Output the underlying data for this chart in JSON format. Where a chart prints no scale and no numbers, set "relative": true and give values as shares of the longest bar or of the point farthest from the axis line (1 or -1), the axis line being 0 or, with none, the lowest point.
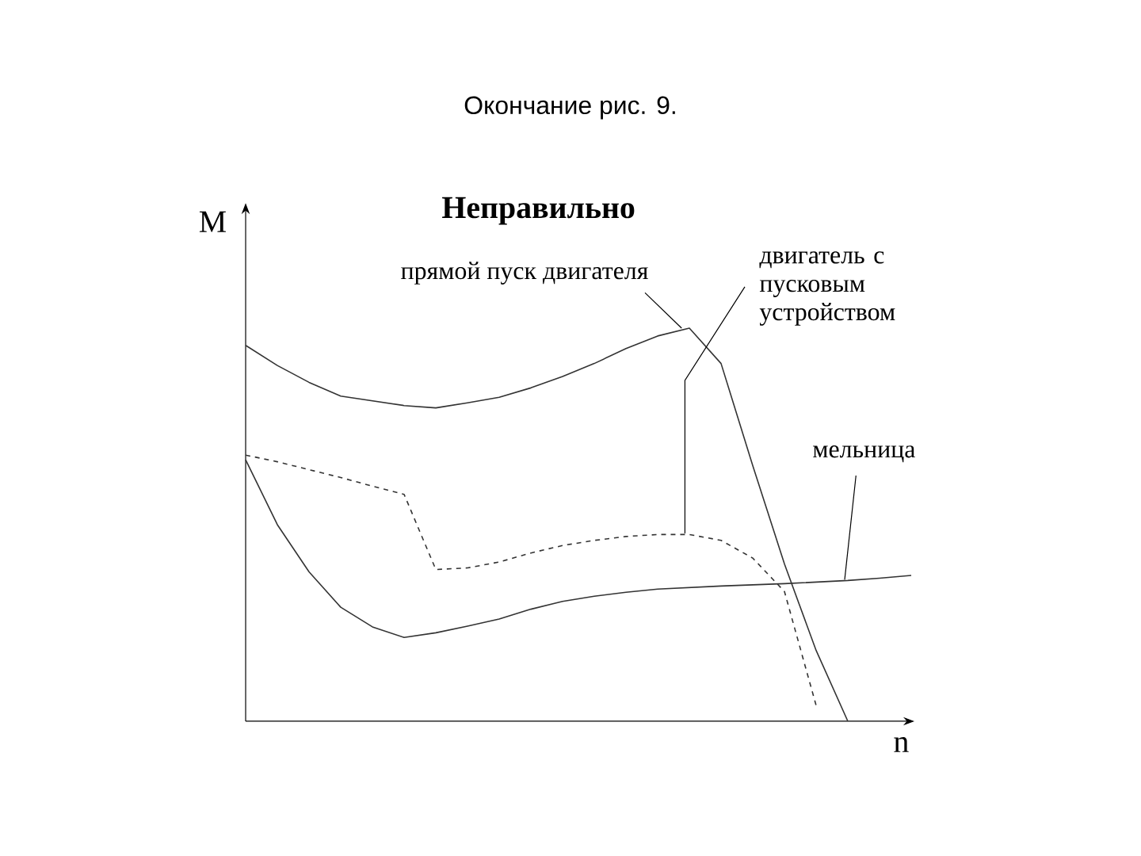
{
  "chart_data": {
    "type": "line",
    "title": "Окончание рис. 9.",
    "subtitle": "Неправильно",
    "xlabel": "n",
    "ylabel": "M",
    "relative": true,
    "tick_labels": false,
    "categories": [
      null,
      null,
      null,
      null,
      null,
      null,
      null,
      null,
      null,
      null,
      null,
      null,
      null,
      null,
      null,
      null,
      null,
      null,
      null,
      null,
      null,
      null
    ],
    "series": [
      {
        "color": "#333333",
        "line_style": "solid",
        "values": [
          0.665,
          0.5,
          0.38,
          0.29,
          0.24,
          0.213,
          0.225,
          0.242,
          0.26,
          0.285,
          0.305,
          0.318,
          0.328,
          0.336,
          0.34,
          0.344,
          0.347,
          0.35,
          0.354,
          0.358,
          0.364,
          0.371
        ]
      },
      {
        "color": "#333333",
        "line_style": "solid",
        "values": [
          0.956,
          0.905,
          0.862,
          0.827,
          0.815,
          0.803,
          0.797,
          0.81,
          0.824,
          0.848,
          0.877,
          0.91,
          0.948,
          0.98,
          1,
          0.91,
          0.65,
          0.4,
          0.18,
          0,
          null,
          null
        ]
      },
      {
        "color": "#333333",
        "line_style": "dashed",
        "values": [
          0.677,
          0.66,
          0.64,
          0.62,
          0.598,
          0.577,
          0.386,
          0.39,
          0.405,
          0.428,
          0.447,
          0.46,
          0.47,
          0.475,
          0.475,
          0.46,
          0.415,
          0.33,
          0.04,
          null,
          null,
          null
        ]
      }
    ],
    "annotations": [
      "прямой пуск двигателя",
      "двигатель с пусковым устройством",
      "мельница"
    ]
  }
}
